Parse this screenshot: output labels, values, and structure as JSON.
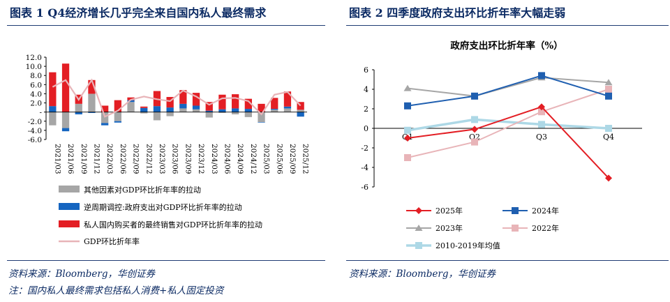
{
  "left": {
    "figure_title": "图表 1   Q4经济增长几乎完全来自国内私人最终需求",
    "source": "资料来源：Bloomberg，华创证券",
    "note": "注：国内私人最终需求包括私人消费+私人固定投资"
  },
  "right": {
    "figure_title": "图表 2   四季度政府支出环比折年率大幅走弱",
    "source": "资料来源：Bloomberg，华创证券"
  },
  "chart_data": [
    {
      "type": "bar",
      "stacked": true,
      "ylim": [
        -6,
        12
      ],
      "yticks": [
        "12.0",
        "10.0",
        "8.0",
        "6.0",
        "4.0",
        "2.0",
        "-",
        "-2.0",
        "-4.0",
        "-6.0"
      ],
      "categories": [
        "2021/03",
        "2021/06",
        "2021/09",
        "2021/12",
        "2022/03",
        "2022/06",
        "2022/09",
        "2022/12",
        "2023/03",
        "2023/06",
        "2023/09",
        "2023/12",
        "2024/03",
        "2024/06",
        "2024/09",
        "2024/12",
        "2025/03",
        "2025/06",
        "2025/09",
        "2025/12"
      ],
      "series": [
        {
          "name": "其他因素对GDP环比折年率的拉动",
          "color": "#a6a6a6",
          "values": [
            -2.9,
            -3.5,
            1.8,
            4.0,
            -2.4,
            -2.0,
            2.2,
            -0.3,
            -1.8,
            -0.9,
            0.8,
            0.6,
            -1.2,
            -0.2,
            -0.5,
            -1.1,
            -2.2,
            0.5,
            0.8,
            0.5
          ]
        },
        {
          "name": "逆周期调控:政府支出对GDP环比折年率的拉动",
          "color": "#1565c0",
          "values": [
            1.3,
            -0.7,
            -0.5,
            -0.2,
            -0.5,
            -0.3,
            0.4,
            0.9,
            1.3,
            1.0,
            1.0,
            0.8,
            0.3,
            0.6,
            0.8,
            0.7,
            -0.1,
            0.2,
            0.4,
            -1.0
          ]
        },
        {
          "name": "私人国内购买者的最终销售对GDP环比折年率的拉动",
          "color": "#e31e24",
          "values": [
            7.4,
            10.6,
            2.0,
            3.0,
            1.4,
            2.6,
            0.6,
            0.3,
            3.3,
            2.3,
            3.0,
            2.8,
            1.9,
            3.2,
            3.1,
            2.2,
            1.8,
            2.4,
            3.3,
            1.7
          ]
        }
      ],
      "line": {
        "name": "GDP环比折年率",
        "color": "#e8b4b8",
        "values": [
          5.5,
          7.0,
          2.7,
          7.0,
          -1.0,
          0.3,
          2.7,
          3.4,
          2.8,
          2.4,
          4.7,
          3.4,
          1.6,
          3.0,
          3.1,
          2.4,
          -0.5,
          3.8,
          4.4,
          1.4
        ]
      }
    },
    {
      "type": "line",
      "title": "政府支出环比折年率（%）",
      "categories": [
        "Q1",
        "Q2",
        "Q3",
        "Q4"
      ],
      "ylim": [
        -6,
        6
      ],
      "yticks": [
        "6",
        "4",
        "2",
        "0",
        "-2",
        "-4",
        "-6"
      ],
      "series": [
        {
          "name": "2025年",
          "color": "#e31e24",
          "marker": "diamond",
          "values": [
            -1.0,
            -0.1,
            2.2,
            -5.1
          ]
        },
        {
          "name": "2024年",
          "color": "#1f5fb0",
          "marker": "square",
          "values": [
            2.3,
            3.3,
            5.4,
            3.3
          ]
        },
        {
          "name": "2023年",
          "color": "#a6a6a6",
          "marker": "triangle",
          "values": [
            4.1,
            3.3,
            5.2,
            4.7
          ]
        },
        {
          "name": "2022年",
          "color": "#e8b4b8",
          "marker": "square",
          "values": [
            -3.0,
            -1.4,
            1.7,
            4.0
          ]
        },
        {
          "name": "2010-2019年均值",
          "color": "#add8e6",
          "marker": "square",
          "values": [
            -0.2,
            0.9,
            0.4,
            0.0
          ]
        }
      ]
    }
  ]
}
